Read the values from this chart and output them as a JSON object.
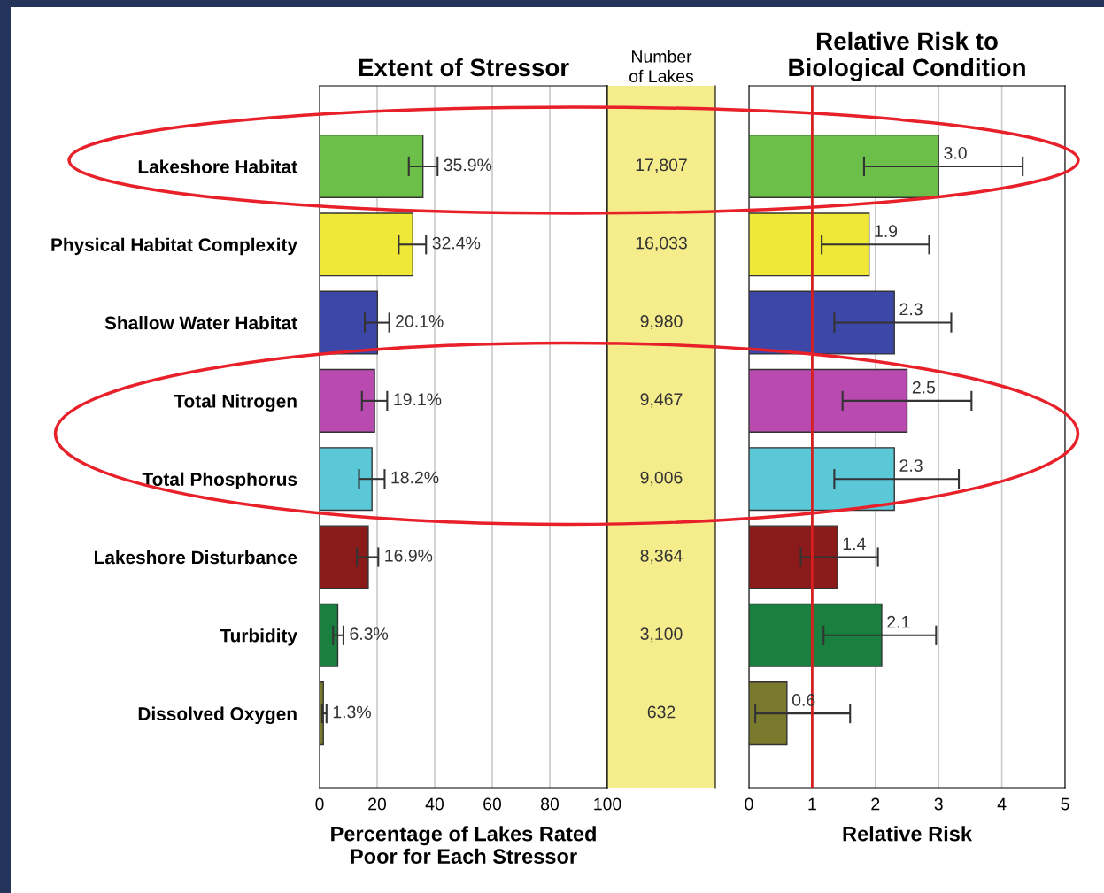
{
  "chart_data": [
    {
      "type": "bar",
      "orientation": "horizontal",
      "title": "Extent of Stressor",
      "xlabel": "Percentage of Lakes Rated\nPoor for Each Stressor",
      "categories": [
        "Lakeshore Habitat",
        "Physical Habitat Complexity",
        "Shallow Water Habitat",
        "Total Nitrogen",
        "Total Phosphorus",
        "Lakeshore Disturbance",
        "Turbidity",
        "Dissolved Oxygen"
      ],
      "values": [
        35.9,
        32.4,
        20.1,
        19.1,
        18.2,
        16.9,
        6.3,
        1.3
      ],
      "value_labels": [
        "35.9%",
        "32.4%",
        "20.1%",
        "19.1%",
        "18.2%",
        "16.9%",
        "6.3%",
        "1.3%"
      ],
      "errors": [
        [
          31,
          41
        ],
        [
          27.5,
          37
        ],
        [
          15.7,
          24.2
        ],
        [
          14.7,
          23.5
        ],
        [
          13.7,
          22.6
        ],
        [
          13,
          20.4
        ],
        [
          4.7,
          8.3
        ],
        [
          0.9,
          2.4
        ]
      ],
      "colors": [
        "#6cc04a",
        "#f0e836",
        "#3c47a8",
        "#b94bb0",
        "#5bc8d8",
        "#8b1a1a",
        "#1a8040",
        "#7a7a2e"
      ],
      "xlim": [
        0,
        100
      ],
      "xticks": [
        0,
        20,
        40,
        60,
        80,
        100
      ],
      "grid": "x"
    },
    {
      "type": "other",
      "title": "Number of Lakes",
      "color": "#f5ec8c",
      "values": [
        17807,
        16033,
        9980,
        9467,
        9006,
        8364,
        3100,
        632
      ],
      "value_labels": [
        "17,807",
        "16,033",
        "9,980",
        "9,467",
        "9,006",
        "8,364",
        "3,100",
        "632"
      ]
    },
    {
      "type": "bar",
      "orientation": "horizontal",
      "title": "Relative Risk to\nBiological Condition",
      "xlabel": "Relative Risk",
      "tick_labels": "x",
      "categories": [
        null,
        null,
        null,
        null,
        null,
        null,
        null,
        null
      ],
      "values": [
        3.0,
        1.9,
        2.3,
        2.5,
        2.3,
        1.4,
        2.1,
        0.6
      ],
      "value_labels": [
        "3.0",
        "1.9",
        "2.3",
        "2.5",
        "2.3",
        "1.4",
        "2.1",
        "0.6"
      ],
      "errors": [
        [
          1.82,
          4.33
        ],
        [
          1.15,
          2.85
        ],
        [
          1.35,
          3.2
        ],
        [
          1.48,
          3.52
        ],
        [
          1.35,
          3.32
        ],
        [
          0.82,
          2.04
        ],
        [
          1.18,
          2.96
        ],
        [
          0.1,
          1.6
        ]
      ],
      "colors": [
        "#6cc04a",
        "#f0e836",
        "#3c47a8",
        "#b94bb0",
        "#5bc8d8",
        "#8b1a1a",
        "#1a8040",
        "#7a7a2e"
      ],
      "xlim": [
        0,
        5
      ],
      "xticks": [
        0,
        1,
        2,
        3,
        4,
        5
      ],
      "grid": "x",
      "ref_lines": [
        {
          "axis": "x",
          "value": 1,
          "color": "#d62020"
        }
      ]
    }
  ]
}
